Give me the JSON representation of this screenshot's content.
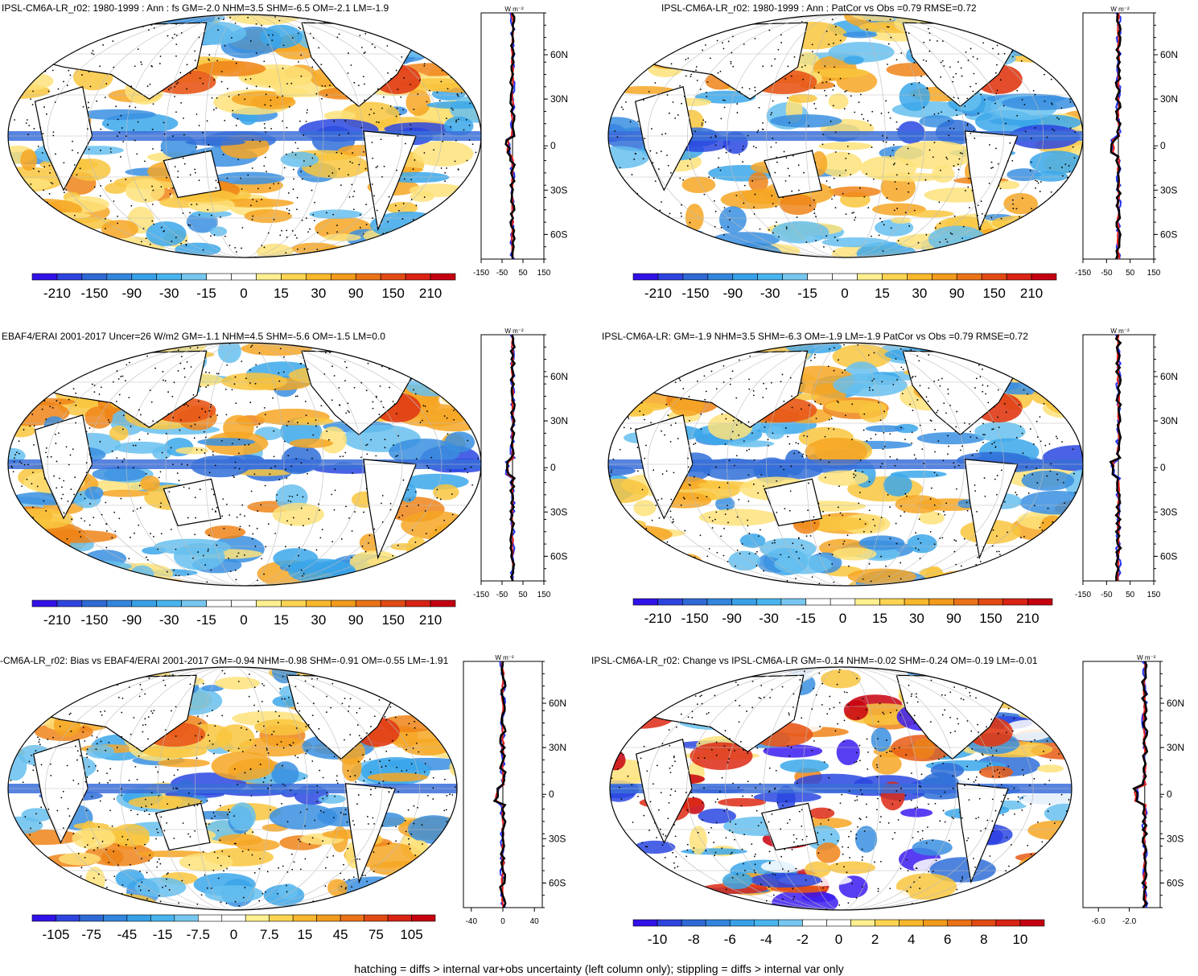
{
  "footnote": "hatching = diffs > internal var+obs uncertainty (left column only); stippling = diffs > internal var only",
  "chart_data": [
    {
      "type": "heatmap",
      "title": "IPSL-CM6A-LR_r02: 1980-1999 : Ann : fs GM=-2.0 NHM=3.5 SHM=-6.5 OM=-2.1 LM=-1.9",
      "colorbar": {
        "labels": [
          "-210",
          "-150",
          "-90",
          "-30",
          "-15",
          "0",
          "15",
          "30",
          "90",
          "150",
          "210"
        ],
        "range": [
          -210,
          210
        ]
      },
      "profile": {
        "units_label": "W m⁻²",
        "xticks": [
          "-150",
          "-50",
          "50",
          "150"
        ],
        "xlim": [
          -150,
          150
        ],
        "lat_labels": [
          "60N",
          "30N",
          "0",
          "30S",
          "60S"
        ]
      }
    },
    {
      "type": "heatmap",
      "title": "IPSL-CM6A-LR_r02: 1980-1999 : Ann : PatCor vs Obs =0.79 RMSE=0.72",
      "colorbar": {
        "labels": [
          "-210",
          "-150",
          "-90",
          "-30",
          "-15",
          "0",
          "15",
          "30",
          "90",
          "150",
          "210"
        ],
        "range": [
          -210,
          210
        ]
      },
      "profile": {
        "units_label": "W m⁻²",
        "xticks": [
          "-150",
          "-50",
          "50",
          "150"
        ],
        "xlim": [
          -150,
          150
        ],
        "lat_labels": [
          "60N",
          "30N",
          "0",
          "30S",
          "60S"
        ]
      }
    },
    {
      "type": "heatmap",
      "title": "EBAF4/ERAI 2001-2017 Uncer=26 W/m2 GM=-1.1 NHM=4.5 SHM=-5.6 OM=-1.5 LM=0.0",
      "colorbar": {
        "labels": [
          "-210",
          "-150",
          "-90",
          "-30",
          "-15",
          "0",
          "15",
          "30",
          "90",
          "150",
          "210"
        ],
        "range": [
          -210,
          210
        ]
      },
      "profile": {
        "units_label": "W m⁻²",
        "xticks": [
          "-150",
          "-50",
          "50",
          "150"
        ],
        "xlim": [
          -150,
          150
        ],
        "lat_labels": [
          "60N",
          "30N",
          "0",
          "30S",
          "60S"
        ]
      }
    },
    {
      "type": "heatmap",
      "title": "IPSL-CM6A-LR: GM=-1.9 NHM=3.5 SHM=-6.3 OM=-1.9 LM=-1.9 PatCor vs Obs =0.79 RMSE=0.72",
      "colorbar": {
        "labels": [
          "-210",
          "-150",
          "-90",
          "-30",
          "-15",
          "0",
          "15",
          "30",
          "90",
          "150",
          "210"
        ],
        "range": [
          -210,
          210
        ]
      },
      "profile": {
        "units_label": "W m⁻²",
        "xticks": [
          "-150",
          "-50",
          "50",
          "150"
        ],
        "xlim": [
          -150,
          150
        ],
        "lat_labels": [
          "60N",
          "30N",
          "0",
          "30S",
          "60S"
        ]
      }
    },
    {
      "type": "heatmap",
      "title": "-CM6A-LR_r02: Bias vs EBAF4/ERAI 2001-2017 GM=-0.94 NHM=-0.98 SHM=-0.91 OM=-0.55 LM=-1.91",
      "colorbar": {
        "labels": [
          "-105",
          "-75",
          "-45",
          "-15",
          "-7.5",
          "0",
          "7.5",
          "15",
          "45",
          "75",
          "105"
        ],
        "range": [
          -105,
          105
        ]
      },
      "profile": {
        "units_label": "W m⁻²",
        "xticks": [
          "-40",
          "0",
          "40"
        ],
        "xlim": [
          -50,
          50
        ],
        "lat_labels": [
          "60N",
          "30N",
          "0",
          "30S",
          "60S"
        ]
      }
    },
    {
      "type": "heatmap",
      "title": "IPSL-CM6A-LR_r02: Change vs IPSL-CM6A-LR GM=-0.14 NHM=-0.02 SHM=-0.24 OM=-0.19 LM=-0.01",
      "colorbar": {
        "labels": [
          "-10",
          "-8",
          "-6",
          "-4",
          "-2",
          "0",
          "2",
          "4",
          "6",
          "8",
          "10"
        ],
        "range": [
          -10,
          10
        ]
      },
      "profile": {
        "units_label": "W m⁻²",
        "xticks": [
          "-6.0",
          "-2.0"
        ],
        "xlim": [
          -8,
          2
        ],
        "lat_labels": [
          "60N",
          "30N",
          "0",
          "30S",
          "60S"
        ]
      }
    }
  ]
}
